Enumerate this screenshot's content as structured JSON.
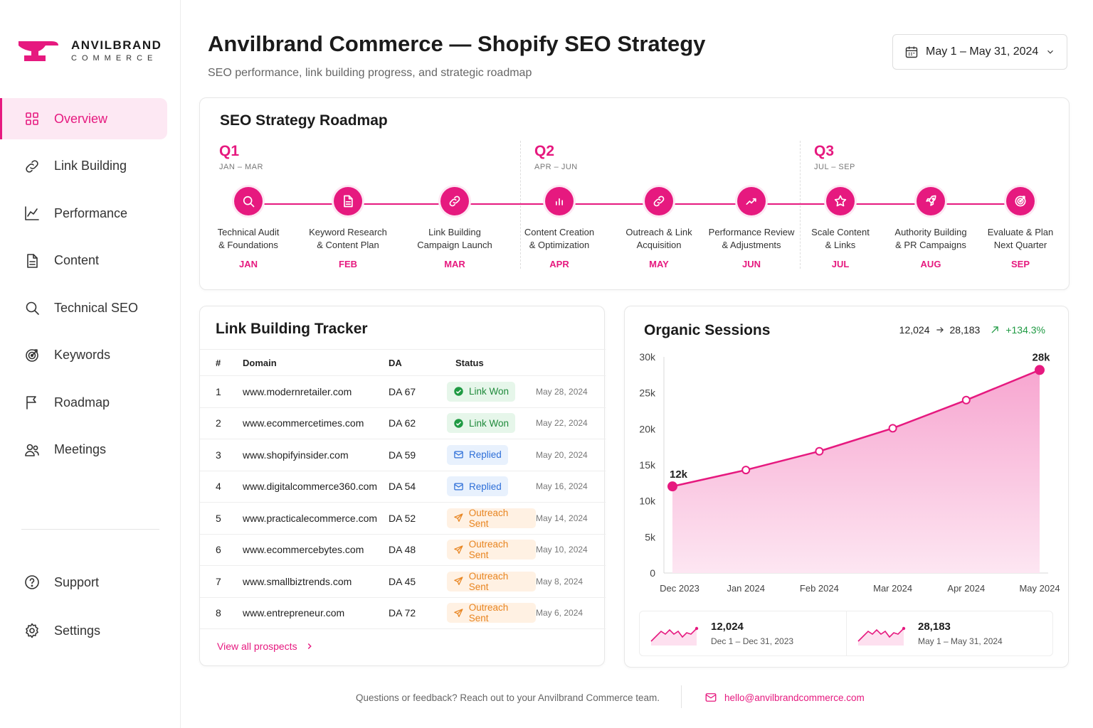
{
  "brand": {
    "name": "ANVILBRAND",
    "sub": "COMMERCE"
  },
  "sidebar": {
    "items": [
      {
        "label": "Overview",
        "icon": "grid-icon"
      },
      {
        "label": "Link Building",
        "icon": "link-icon"
      },
      {
        "label": "Performance",
        "icon": "chart-line-icon"
      },
      {
        "label": "Content",
        "icon": "document-icon"
      },
      {
        "label": "Technical SEO",
        "icon": "search-icon"
      },
      {
        "label": "Keywords",
        "icon": "target-icon"
      },
      {
        "label": "Roadmap",
        "icon": "flag-icon"
      },
      {
        "label": "Meetings",
        "icon": "users-icon"
      }
    ],
    "bottom": [
      {
        "label": "Support",
        "icon": "help-icon"
      },
      {
        "label": "Settings",
        "icon": "gear-icon"
      }
    ]
  },
  "header": {
    "title": "Anvilbrand Commerce — Shopify SEO Strategy",
    "subtitle": "SEO performance, link building progress, and strategic roadmap",
    "date_range": "May 1 – May 31, 2024"
  },
  "roadmap": {
    "title": "SEO Strategy Roadmap",
    "quarters": [
      {
        "q": "Q1",
        "range": "JAN – MAR"
      },
      {
        "q": "Q2",
        "range": "APR – JUN"
      },
      {
        "q": "Q3",
        "range": "JUL – SEP"
      }
    ],
    "steps": [
      {
        "label": "Technical Audit\n& Foundations",
        "month": "JAN",
        "icon": "search-icon"
      },
      {
        "label": "Keyword Research\n& Content Plan",
        "month": "FEB",
        "icon": "document-icon"
      },
      {
        "label": "Link Building\nCampaign Launch",
        "month": "MAR",
        "icon": "link-icon"
      },
      {
        "label": "Content Creation\n& Optimization",
        "month": "APR",
        "icon": "bar-chart-icon"
      },
      {
        "label": "Outreach & Link\nAcquisition",
        "month": "MAY",
        "icon": "link-icon"
      },
      {
        "label": "Performance Review\n& Adjustments",
        "month": "JUN",
        "icon": "trend-icon"
      },
      {
        "label": "Scale Content\n& Links",
        "month": "JUL",
        "icon": "star-icon"
      },
      {
        "label": "Authority Building\n& PR Campaigns",
        "month": "AUG",
        "icon": "rocket-icon"
      },
      {
        "label": "Evaluate & Plan\nNext Quarter",
        "month": "SEP",
        "icon": "target-icon"
      }
    ]
  },
  "tracker": {
    "title": "Link Building Tracker",
    "headers": {
      "num": "#",
      "domain": "Domain",
      "da": "DA",
      "status": "Status"
    },
    "rows": [
      {
        "num": "1",
        "domain": "www.modernretailer.com",
        "da": "DA 67",
        "status": "Link Won",
        "kind": "won",
        "date": "May 28, 2024"
      },
      {
        "num": "2",
        "domain": "www.ecommercetimes.com",
        "da": "DA 62",
        "status": "Link Won",
        "kind": "won",
        "date": "May 22, 2024"
      },
      {
        "num": "3",
        "domain": "www.shopifyinsider.com",
        "da": "DA 59",
        "status": "Replied",
        "kind": "rep",
        "date": "May 20, 2024"
      },
      {
        "num": "4",
        "domain": "www.digitalcommerce360.com",
        "da": "DA 54",
        "status": "Replied",
        "kind": "rep",
        "date": "May 16, 2024"
      },
      {
        "num": "5",
        "domain": "www.practicalecommerce.com",
        "da": "DA 52",
        "status": "Outreach Sent",
        "kind": "out",
        "date": "May 14, 2024"
      },
      {
        "num": "6",
        "domain": "www.ecommercebytes.com",
        "da": "DA 48",
        "status": "Outreach Sent",
        "kind": "out",
        "date": "May 10, 2024"
      },
      {
        "num": "7",
        "domain": "www.smallbiztrends.com",
        "da": "DA 45",
        "status": "Outreach Sent",
        "kind": "out",
        "date": "May 8, 2024"
      },
      {
        "num": "8",
        "domain": "www.entrepreneur.com",
        "da": "DA 72",
        "status": "Outreach Sent",
        "kind": "out",
        "date": "May 6, 2024"
      }
    ],
    "view_all": "View all prospects"
  },
  "sessions": {
    "title": "Organic Sessions",
    "from": "12,024",
    "to": "28,183",
    "change": "+134.3%",
    "mini": [
      {
        "value": "12,024",
        "label": "Dec 1 – Dec 31, 2023"
      },
      {
        "value": "28,183",
        "label": "May 1 – May 31, 2024"
      }
    ]
  },
  "chart_data": {
    "type": "area",
    "title": "Organic Sessions",
    "categories": [
      "Dec 2023",
      "Jan 2024",
      "Feb 2024",
      "Mar 2024",
      "Apr 2024",
      "May 2024"
    ],
    "values": [
      12024,
      14300,
      16900,
      20100,
      24000,
      28183
    ],
    "ylim": [
      0,
      30000
    ],
    "yticks": [
      "0",
      "5k",
      "10k",
      "15k",
      "20k",
      "25k",
      "30k"
    ],
    "point_labels": {
      "first": "12k",
      "last": "28k"
    },
    "color": "#e6197f"
  },
  "footer": {
    "text": "Questions or feedback? Reach out to your Anvilbrand Commerce team.",
    "email": "hello@anvilbrandcommerce.com"
  }
}
